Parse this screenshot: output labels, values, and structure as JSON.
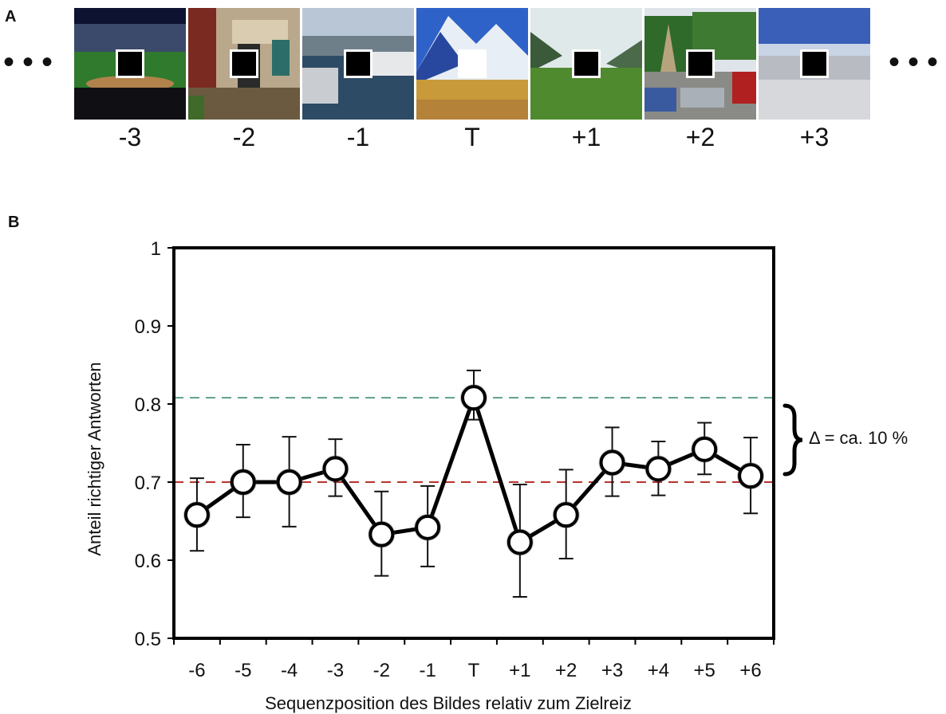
{
  "panel_a": {
    "label": "A",
    "ellipsis_left": "•••",
    "ellipsis_right": "•••",
    "frames": [
      {
        "label": "-3",
        "scene": "stadium",
        "target": false
      },
      {
        "label": "-2",
        "scene": "building",
        "target": false
      },
      {
        "label": "-1",
        "scene": "harbor",
        "target": false
      },
      {
        "label": "T",
        "scene": "mountain",
        "target": true
      },
      {
        "label": "+1",
        "scene": "meadow",
        "target": false
      },
      {
        "label": "+2",
        "scene": "street",
        "target": false
      },
      {
        "label": "+3",
        "scene": "winter",
        "target": false
      }
    ]
  },
  "panel_b": {
    "label": "B",
    "annotation": "Δ = ca. 10 %"
  },
  "chart_data": {
    "type": "line",
    "xlabel": "Sequenzposition des Bildes relativ zum Zielreiz",
    "ylabel": "Anteil richtiger Antworten",
    "categories": [
      "-6",
      "-5",
      "-4",
      "-3",
      "-2",
      "-1",
      "T",
      "+1",
      "+2",
      "+3",
      "+4",
      "+5",
      "+6"
    ],
    "series": [
      {
        "values": [
          0.658,
          0.7,
          0.7,
          0.717,
          0.633,
          0.642,
          0.808,
          0.623,
          0.658,
          0.725,
          0.717,
          0.742,
          0.708
        ],
        "error_low": [
          0.612,
          0.655,
          0.643,
          0.682,
          0.58,
          0.592,
          0.78,
          0.553,
          0.602,
          0.682,
          0.683,
          0.71,
          0.66
        ],
        "error_high": [
          0.705,
          0.748,
          0.758,
          0.755,
          0.688,
          0.695,
          0.843,
          0.697,
          0.716,
          0.77,
          0.752,
          0.776,
          0.757
        ]
      }
    ],
    "reference_lines": [
      {
        "value": 0.808,
        "color": "#5aa08a",
        "style": "dashed"
      },
      {
        "value": 0.7,
        "color": "#b8332e",
        "style": "dashed"
      }
    ],
    "ylim": [
      0.5,
      1
    ],
    "yticks": [
      "0.5",
      "0.6",
      "0.7",
      "0.8",
      "0.9",
      "1"
    ],
    "grid": false,
    "legend": "none"
  }
}
